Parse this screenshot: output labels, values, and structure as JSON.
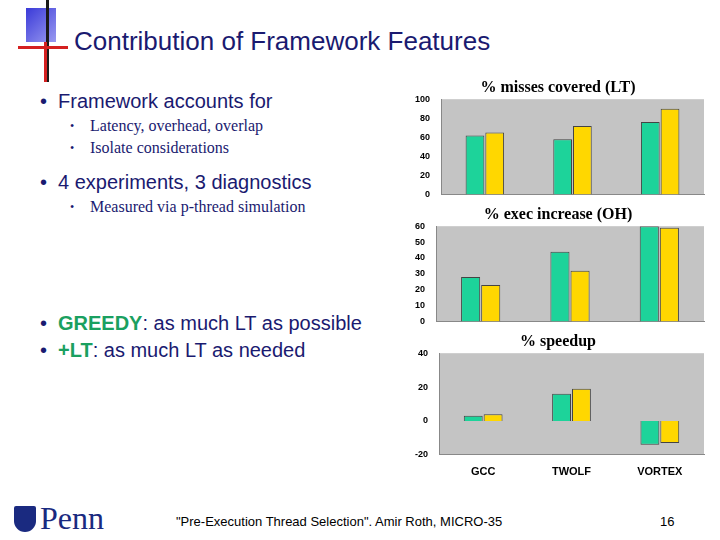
{
  "slide": {
    "title": "Contribution of Framework Features",
    "bullets": [
      {
        "text": "Framework accounts for",
        "sub": [
          "Latency, overhead, overlap",
          "Isolate considerations"
        ]
      },
      {
        "text": "4 experiments, 3 diagnostics",
        "sub": [
          "Measured via p-thread simulation"
        ]
      },
      {
        "highlight": "GREEDY",
        "text": ": as much LT as possible"
      },
      {
        "highlight": "+LT",
        "text": ": as much LT as needed"
      }
    ],
    "logo": "Penn",
    "footer": "\"Pre-Execution Thread Selection\". Amir Roth, MICRO-35",
    "page": "16"
  },
  "chart_data": [
    {
      "type": "bar",
      "title": "% misses covered (LT)",
      "categories": [
        null,
        null,
        null
      ],
      "series": [
        {
          "color": "#1dd39a",
          "values": [
            62,
            58,
            76
          ]
        },
        {
          "color": "#ffd700",
          "values": [
            65,
            72,
            90
          ]
        }
      ],
      "ylim": [
        0,
        100
      ],
      "yticks": [
        0,
        20,
        40,
        60,
        80,
        100
      ],
      "grid": false,
      "tick_labels": "y"
    },
    {
      "type": "bar",
      "title": "% exec increase (OH)",
      "categories": [
        null,
        null,
        null
      ],
      "series": [
        {
          "color": "#1dd39a",
          "values": [
            28,
            44,
            60
          ]
        },
        {
          "color": "#ffd700",
          "values": [
            23,
            32,
            59
          ]
        }
      ],
      "ylim": [
        0,
        60
      ],
      "yticks": [
        0,
        10,
        20,
        30,
        40,
        50,
        60
      ],
      "grid": false,
      "tick_labels": "y"
    },
    {
      "type": "bar",
      "title": "% speedup",
      "categories": [
        "GCC",
        "TWOLF",
        "VORTEX"
      ],
      "series": [
        {
          "color": "#1dd39a",
          "values": [
            3,
            16,
            -14
          ]
        },
        {
          "color": "#ffd700",
          "values": [
            4,
            19,
            -13
          ]
        }
      ],
      "ylim": [
        -20,
        40
      ],
      "yticks": [
        -20,
        0,
        20,
        40
      ],
      "grid": false
    }
  ]
}
